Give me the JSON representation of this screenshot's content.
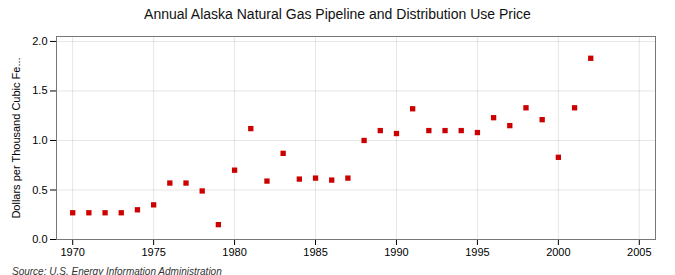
{
  "chart_data": {
    "type": "scatter",
    "title": "Annual Alaska Natural Gas Pipeline and Distribution Use Price",
    "ylabel": "Dollars per Thousand Cubic Fe...",
    "source": "Source: U.S. Energy Information Administration",
    "x": [
      1970,
      1971,
      1972,
      1973,
      1974,
      1975,
      1976,
      1977,
      1978,
      1979,
      1980,
      1981,
      1982,
      1983,
      1984,
      1985,
      1986,
      1987,
      1988,
      1989,
      1990,
      1991,
      1992,
      1993,
      1994,
      1995,
      1996,
      1997,
      1998,
      1999,
      2000,
      2001,
      2002
    ],
    "values": [
      0.27,
      0.27,
      0.27,
      0.27,
      0.3,
      0.35,
      0.57,
      0.57,
      0.49,
      0.15,
      0.7,
      1.12,
      0.59,
      0.87,
      0.61,
      0.62,
      0.6,
      0.62,
      1.0,
      1.1,
      1.07,
      1.32,
      1.1,
      1.1,
      1.1,
      1.08,
      1.23,
      1.15,
      1.33,
      1.21,
      0.83,
      1.33,
      1.83
    ],
    "color": "#cc0000",
    "marker": "square",
    "xlim": [
      1969,
      2006
    ],
    "ylim": [
      0.0,
      2.05
    ],
    "xticks": [
      1970,
      1975,
      1980,
      1985,
      1990,
      1995,
      2000,
      2005
    ],
    "yticks": [
      {
        "value": 0.0,
        "label": "0.0"
      },
      0.5,
      {
        "value": 1.0,
        "label": "1.0"
      },
      1.5,
      {
        "value": 2.0,
        "label": "2.0"
      }
    ],
    "grid": true
  }
}
